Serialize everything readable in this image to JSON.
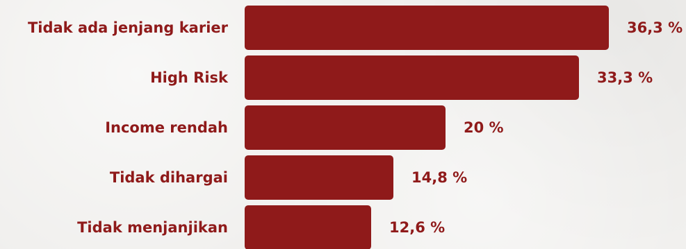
{
  "chart_data": {
    "type": "bar",
    "orientation": "horizontal",
    "categories": [
      "Tidak ada jenjang karier",
      "High Risk",
      "Income rendah",
      "Tidak dihargai",
      "Tidak menjanjikan"
    ],
    "values": [
      36.3,
      33.3,
      20,
      14.8,
      12.6
    ],
    "value_labels": [
      "36,3 %",
      "33,3 %",
      "20 %",
      "14,8 %",
      "12,6 %"
    ],
    "xlim": [
      0,
      36.3
    ],
    "grid": false,
    "legend": "none",
    "colors": {
      "bar": "#8f1a1a",
      "text": "#8f1a1a"
    }
  }
}
